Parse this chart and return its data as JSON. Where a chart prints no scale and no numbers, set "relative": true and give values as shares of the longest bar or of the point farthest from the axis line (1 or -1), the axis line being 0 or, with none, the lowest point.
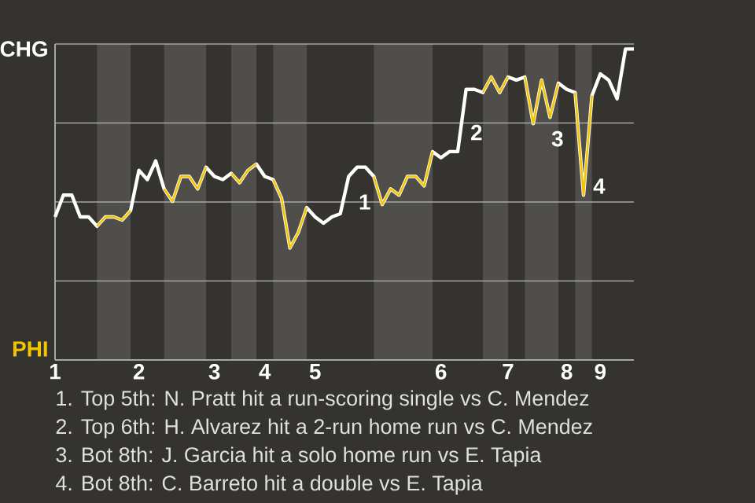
{
  "chart_data": {
    "type": "line",
    "relative": true,
    "categories": [
      "1",
      null,
      null,
      null,
      null,
      null,
      null,
      null,
      null,
      null,
      "2",
      null,
      null,
      null,
      null,
      null,
      null,
      null,
      null,
      "3",
      null,
      null,
      null,
      null,
      null,
      "4",
      null,
      null,
      null,
      null,
      null,
      "5",
      null,
      null,
      null,
      null,
      null,
      null,
      null,
      null,
      null,
      null,
      null,
      null,
      null,
      null,
      "6",
      null,
      null,
      null,
      null,
      null,
      null,
      null,
      "7",
      null,
      null,
      null,
      null,
      null,
      null,
      "8",
      null,
      null,
      null,
      "9",
      null,
      null,
      null,
      null
    ],
    "series": [
      {
        "color": "#ffffff",
        "values": [
          0.46,
          0.53,
          0.53,
          0.46,
          0.46,
          0.43,
          0.46,
          0.46,
          0.45,
          0.48,
          0.61,
          0.58,
          0.64,
          0.55,
          0.51,
          0.59,
          0.59,
          0.55,
          0.62,
          0.59,
          0.58,
          0.6,
          0.57,
          0.61,
          0.63,
          0.59,
          0.58,
          0.52,
          0.36,
          0.41,
          0.49,
          0.46,
          0.44,
          0.46,
          0.47,
          0.59,
          0.62,
          0.62,
          0.59,
          0.5,
          0.55,
          0.53,
          0.59,
          0.59,
          0.56,
          0.67,
          0.65,
          0.67,
          0.67,
          0.87,
          0.87,
          0.86,
          0.91,
          0.86,
          0.91,
          0.9,
          0.91,
          0.76,
          0.9,
          0.78,
          0.89,
          0.87,
          0.86,
          0.53,
          0.85,
          0.92,
          0.9,
          0.84,
          1,
          1
        ]
      },
      {
        "color": "#f2c500",
        "values": [
          null,
          null,
          null,
          null,
          null,
          0.43,
          0.46,
          0.46,
          0.45,
          0.48,
          null,
          null,
          null,
          0.55,
          0.51,
          0.59,
          0.59,
          0.55,
          0.62,
          null,
          null,
          0.6,
          0.57,
          0.61,
          0.63,
          null,
          0.58,
          0.52,
          0.36,
          0.41,
          0.49,
          null,
          null,
          null,
          null,
          null,
          null,
          null,
          0.59,
          0.5,
          0.55,
          0.53,
          0.59,
          0.59,
          0.56,
          0.67,
          null,
          null,
          null,
          null,
          null,
          0.86,
          0.91,
          0.86,
          0.91,
          null,
          0.91,
          0.76,
          0.9,
          0.78,
          0.89,
          null,
          0.86,
          0.53,
          0.85,
          null,
          null,
          null,
          null,
          null
        ]
      }
    ],
    "grid": "y",
    "annotations": [
      "CHG",
      "PHI",
      "1",
      "2",
      "3",
      "4",
      "1. Top 5th: N. Pratt hit a run-scoring single vs C. Mendez",
      "2. Top 6th: H. Alvarez hit a 2-run home run vs C. Mendez",
      "3. Bot 8th: J. Garcia hit a solo home run vs E. Tapia",
      "4. Bot 8th: C. Barreto hit a double vs E. Tapia"
    ]
  }
}
